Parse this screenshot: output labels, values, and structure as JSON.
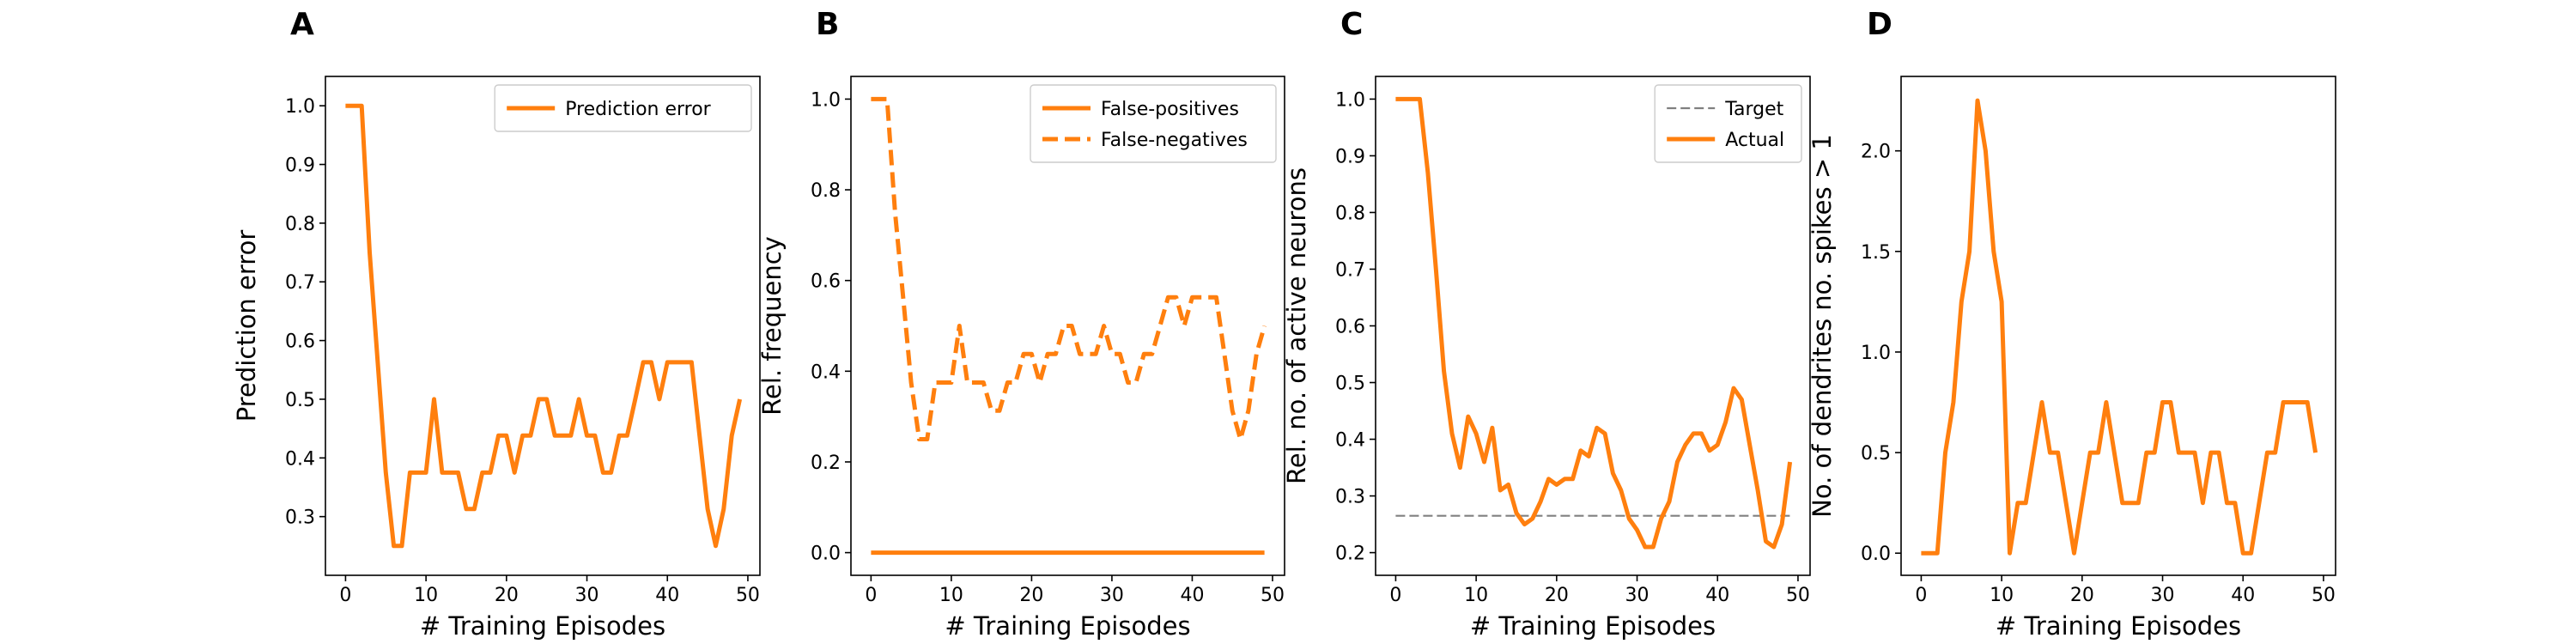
{
  "chart_data": [
    {
      "panel": "A",
      "type": "line",
      "xlabel": "# Training Episodes",
      "ylabel": "Prediction error",
      "xlim": [
        -2.5,
        51.5
      ],
      "ylim": [
        0.2,
        1.05
      ],
      "xticks": [
        0,
        10,
        20,
        30,
        40,
        50
      ],
      "xtick_labels": [
        "0",
        "10",
        "20",
        "30",
        "40",
        "50"
      ],
      "yticks": [
        0.3,
        0.4,
        0.5,
        0.6,
        0.7,
        0.8,
        0.9,
        1.0
      ],
      "ytick_labels": [
        "0.3",
        "0.4",
        "0.5",
        "0.6",
        "0.7",
        "0.8",
        "0.9",
        "1.0"
      ],
      "legend": "top-right",
      "grid": false,
      "x": [
        0,
        1,
        2,
        3,
        4,
        5,
        6,
        7,
        8,
        9,
        10,
        11,
        12,
        13,
        14,
        15,
        16,
        17,
        18,
        19,
        20,
        21,
        22,
        23,
        24,
        25,
        26,
        27,
        28,
        29,
        30,
        31,
        32,
        33,
        34,
        35,
        36,
        37,
        38,
        39,
        40,
        41,
        42,
        43,
        44,
        45,
        46,
        47,
        48,
        49
      ],
      "series": [
        {
          "name": "Prediction error",
          "color": "#ff7f0e",
          "dash": "solid",
          "values": [
            1.0,
            1.0,
            1.0,
            0.75,
            0.563,
            0.375,
            0.25,
            0.25,
            0.375,
            0.375,
            0.375,
            0.5,
            0.375,
            0.375,
            0.375,
            0.313,
            0.313,
            0.375,
            0.375,
            0.438,
            0.438,
            0.375,
            0.438,
            0.438,
            0.5,
            0.5,
            0.438,
            0.438,
            0.438,
            0.5,
            0.438,
            0.438,
            0.375,
            0.375,
            0.438,
            0.438,
            0.5,
            0.563,
            0.563,
            0.5,
            0.563,
            0.563,
            0.563,
            0.563,
            0.438,
            0.313,
            0.25,
            0.313,
            0.438,
            0.5
          ]
        }
      ]
    },
    {
      "panel": "B",
      "type": "line",
      "xlabel": "# Training Episodes",
      "ylabel": "Rel. frequency",
      "xlim": [
        -2.5,
        51.5
      ],
      "ylim": [
        -0.05,
        1.05
      ],
      "xticks": [
        0,
        10,
        20,
        30,
        40,
        50
      ],
      "xtick_labels": [
        "0",
        "10",
        "20",
        "30",
        "40",
        "50"
      ],
      "yticks": [
        0.0,
        0.2,
        0.4,
        0.6,
        0.8,
        1.0
      ],
      "ytick_labels": [
        "0.0",
        "0.2",
        "0.4",
        "0.6",
        "0.8",
        "1.0"
      ],
      "legend": "top-right",
      "grid": false,
      "x": [
        0,
        1,
        2,
        3,
        4,
        5,
        6,
        7,
        8,
        9,
        10,
        11,
        12,
        13,
        14,
        15,
        16,
        17,
        18,
        19,
        20,
        21,
        22,
        23,
        24,
        25,
        26,
        27,
        28,
        29,
        30,
        31,
        32,
        33,
        34,
        35,
        36,
        37,
        38,
        39,
        40,
        41,
        42,
        43,
        44,
        45,
        46,
        47,
        48,
        49
      ],
      "series": [
        {
          "name": "False-positives",
          "color": "#ff7f0e",
          "dash": "solid",
          "values": [
            0,
            0,
            0,
            0,
            0,
            0,
            0,
            0,
            0,
            0,
            0,
            0,
            0,
            0,
            0,
            0,
            0,
            0,
            0,
            0,
            0,
            0,
            0,
            0,
            0,
            0,
            0,
            0,
            0,
            0,
            0,
            0,
            0,
            0,
            0,
            0,
            0,
            0,
            0,
            0,
            0,
            0,
            0,
            0,
            0,
            0,
            0,
            0,
            0,
            0
          ]
        },
        {
          "name": "False-negatives",
          "color": "#ff7f0e",
          "dash": "dashed",
          "values": [
            1.0,
            1.0,
            1.0,
            0.75,
            0.563,
            0.375,
            0.25,
            0.25,
            0.375,
            0.375,
            0.375,
            0.5,
            0.375,
            0.375,
            0.375,
            0.313,
            0.313,
            0.375,
            0.375,
            0.438,
            0.438,
            0.375,
            0.438,
            0.438,
            0.5,
            0.5,
            0.438,
            0.438,
            0.438,
            0.5,
            0.438,
            0.438,
            0.375,
            0.375,
            0.438,
            0.438,
            0.5,
            0.563,
            0.563,
            0.5,
            0.563,
            0.563,
            0.563,
            0.563,
            0.438,
            0.313,
            0.25,
            0.313,
            0.438,
            0.5
          ]
        }
      ]
    },
    {
      "panel": "C",
      "type": "line",
      "xlabel": "# Training Episodes",
      "ylabel": "Rel. no. of active neurons",
      "xlim": [
        -2.5,
        51.5
      ],
      "ylim": [
        0.16,
        1.04
      ],
      "xticks": [
        0,
        10,
        20,
        30,
        40,
        50
      ],
      "xtick_labels": [
        "0",
        "10",
        "20",
        "30",
        "40",
        "50"
      ],
      "yticks": [
        0.2,
        0.3,
        0.4,
        0.5,
        0.6,
        0.7,
        0.8,
        0.9,
        1.0
      ],
      "ytick_labels": [
        "0.2",
        "0.3",
        "0.4",
        "0.5",
        "0.6",
        "0.7",
        "0.8",
        "0.9",
        "1.0"
      ],
      "legend": "top-right",
      "grid": false,
      "x": [
        0,
        1,
        2,
        3,
        4,
        5,
        6,
        7,
        8,
        9,
        10,
        11,
        12,
        13,
        14,
        15,
        16,
        17,
        18,
        19,
        20,
        21,
        22,
        23,
        24,
        25,
        26,
        27,
        28,
        29,
        30,
        31,
        32,
        33,
        34,
        35,
        36,
        37,
        38,
        39,
        40,
        41,
        42,
        43,
        44,
        45,
        46,
        47,
        48,
        49
      ],
      "series": [
        {
          "name": "Target",
          "color": "#808080",
          "dash": "dashed",
          "values": [
            0.265,
            0.265,
            0.265,
            0.265,
            0.265,
            0.265,
            0.265,
            0.265,
            0.265,
            0.265,
            0.265,
            0.265,
            0.265,
            0.265,
            0.265,
            0.265,
            0.265,
            0.265,
            0.265,
            0.265,
            0.265,
            0.265,
            0.265,
            0.265,
            0.265,
            0.265,
            0.265,
            0.265,
            0.265,
            0.265,
            0.265,
            0.265,
            0.265,
            0.265,
            0.265,
            0.265,
            0.265,
            0.265,
            0.265,
            0.265,
            0.265,
            0.265,
            0.265,
            0.265,
            0.265,
            0.265,
            0.265,
            0.265,
            0.265,
            0.265
          ]
        },
        {
          "name": "Actual",
          "color": "#ff7f0e",
          "dash": "solid",
          "values": [
            1.0,
            1.0,
            1.0,
            1.0,
            0.87,
            0.7,
            0.52,
            0.41,
            0.35,
            0.44,
            0.41,
            0.36,
            0.42,
            0.31,
            0.32,
            0.27,
            0.25,
            0.26,
            0.29,
            0.33,
            0.32,
            0.33,
            0.33,
            0.38,
            0.37,
            0.42,
            0.41,
            0.34,
            0.31,
            0.26,
            0.24,
            0.21,
            0.21,
            0.26,
            0.29,
            0.36,
            0.39,
            0.41,
            0.41,
            0.38,
            0.39,
            0.43,
            0.49,
            0.47,
            0.39,
            0.31,
            0.22,
            0.21,
            0.25,
            0.36
          ]
        }
      ]
    },
    {
      "panel": "D",
      "type": "line",
      "xlabel": "# Training Episodes",
      "ylabel": "No. of dendrites no. spikes > 1",
      "xlim": [
        -2.5,
        51.5
      ],
      "ylim": [
        -0.11,
        2.37
      ],
      "xticks": [
        0,
        10,
        20,
        30,
        40,
        50
      ],
      "xtick_labels": [
        "0",
        "10",
        "20",
        "30",
        "40",
        "50"
      ],
      "yticks": [
        0.0,
        0.5,
        1.0,
        1.5,
        2.0
      ],
      "ytick_labels": [
        "0.0",
        "0.5",
        "1.0",
        "1.5",
        "2.0"
      ],
      "legend": "none",
      "grid": false,
      "x": [
        0,
        1,
        2,
        3,
        4,
        5,
        6,
        7,
        8,
        9,
        10,
        11,
        12,
        13,
        14,
        15,
        16,
        17,
        18,
        19,
        20,
        21,
        22,
        23,
        24,
        25,
        26,
        27,
        28,
        29,
        30,
        31,
        32,
        33,
        34,
        35,
        36,
        37,
        38,
        39,
        40,
        41,
        42,
        43,
        44,
        45,
        46,
        47,
        48,
        49
      ],
      "series": [
        {
          "name": "",
          "color": "#ff7f0e",
          "dash": "solid",
          "values": [
            0,
            0,
            0,
            0.5,
            0.75,
            1.25,
            1.5,
            2.25,
            2.0,
            1.5,
            1.25,
            0,
            0.25,
            0.25,
            0.5,
            0.75,
            0.5,
            0.5,
            0.25,
            0,
            0.25,
            0.5,
            0.5,
            0.75,
            0.5,
            0.25,
            0.25,
            0.25,
            0.5,
            0.5,
            0.75,
            0.75,
            0.5,
            0.5,
            0.5,
            0.25,
            0.5,
            0.5,
            0.25,
            0.25,
            0,
            0,
            0.25,
            0.5,
            0.5,
            0.75,
            0.75,
            0.75,
            0.75,
            0.5
          ]
        }
      ]
    }
  ]
}
